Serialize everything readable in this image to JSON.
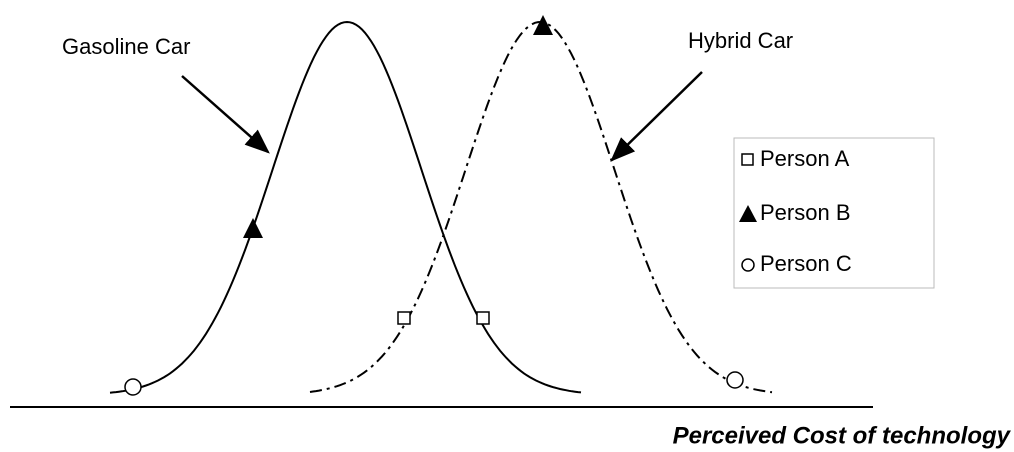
{
  "labels": {
    "gasoline": "Gasoline Car",
    "hybrid": "Hybrid Car"
  },
  "legend": [
    "Person A",
    "Person B",
    "Person C"
  ],
  "axis_label": "Perceived Cost of technology"
}
